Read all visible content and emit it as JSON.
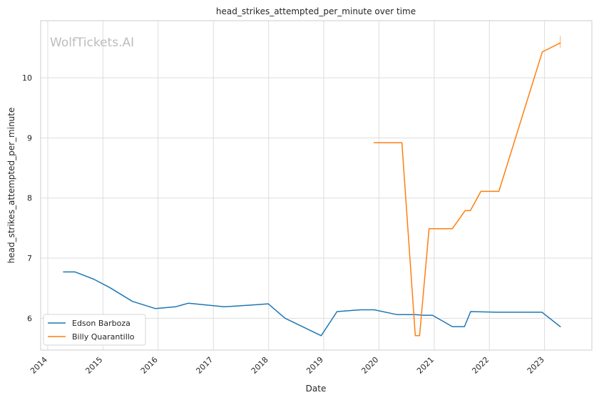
{
  "chart_data": {
    "type": "line",
    "title": "head_strikes_attempted_per_minute over time",
    "xlabel": "Date",
    "ylabel": "head_strikes_attempted_per_minute",
    "watermark": "WolfTickets.AI",
    "x_ticks": [
      "2014",
      "2015",
      "2016",
      "2017",
      "2018",
      "2019",
      "2020",
      "2021",
      "2022",
      "2023"
    ],
    "y_ticks": [
      "6",
      "7",
      "8",
      "9",
      "10"
    ],
    "xlim": [
      "2013-11-15",
      "2023-11-10"
    ],
    "ylim": [
      5.47,
      10.95
    ],
    "grid": true,
    "legend_position": "lower-left",
    "series": [
      {
        "name": "Edson Barboza",
        "color": "#1f77b4",
        "points": [
          [
            "2014-04-15",
            6.77
          ],
          [
            "2014-07-01",
            6.77
          ],
          [
            "2014-11-01",
            6.65
          ],
          [
            "2015-02-15",
            6.51
          ],
          [
            "2015-07-15",
            6.28
          ],
          [
            "2015-12-15",
            6.16
          ],
          [
            "2016-04-25",
            6.19
          ],
          [
            "2016-07-20",
            6.25
          ],
          [
            "2017-03-15",
            6.19
          ],
          [
            "2017-09-15",
            6.22
          ],
          [
            "2017-12-30",
            6.24
          ],
          [
            "2018-04-20",
            6.0
          ],
          [
            "2018-12-15",
            5.71
          ],
          [
            "2019-03-30",
            6.11
          ],
          [
            "2019-09-01",
            6.14
          ],
          [
            "2019-12-01",
            6.14
          ],
          [
            "2020-05-01",
            6.06
          ],
          [
            "2020-08-29",
            6.06
          ],
          [
            "2020-10-20",
            6.05
          ],
          [
            "2020-12-20",
            6.05
          ],
          [
            "2021-05-01",
            5.86
          ],
          [
            "2021-07-20",
            5.86
          ],
          [
            "2021-08-30",
            6.11
          ],
          [
            "2022-02-20",
            6.1
          ],
          [
            "2022-12-15",
            6.1
          ],
          [
            "2023-04-15",
            5.86
          ]
        ]
      },
      {
        "name": "Billy Quarantillo",
        "color": "#ff7f0e",
        "points": [
          [
            "2019-11-30",
            8.92
          ],
          [
            "2020-06-01",
            8.92
          ],
          [
            "2020-08-29",
            5.71
          ],
          [
            "2020-09-26",
            5.71
          ],
          [
            "2020-11-28",
            7.49
          ],
          [
            "2021-05-01",
            7.49
          ],
          [
            "2021-07-24",
            7.79
          ],
          [
            "2021-08-28",
            7.79
          ],
          [
            "2021-11-06",
            8.11
          ],
          [
            "2022-03-05",
            8.11
          ],
          [
            "2022-12-17",
            10.43
          ],
          [
            "2023-04-15",
            10.58
          ]
        ],
        "error_bars": [
          {
            "x": "2023-04-15",
            "low": 10.5,
            "high": 10.7
          }
        ]
      }
    ]
  }
}
